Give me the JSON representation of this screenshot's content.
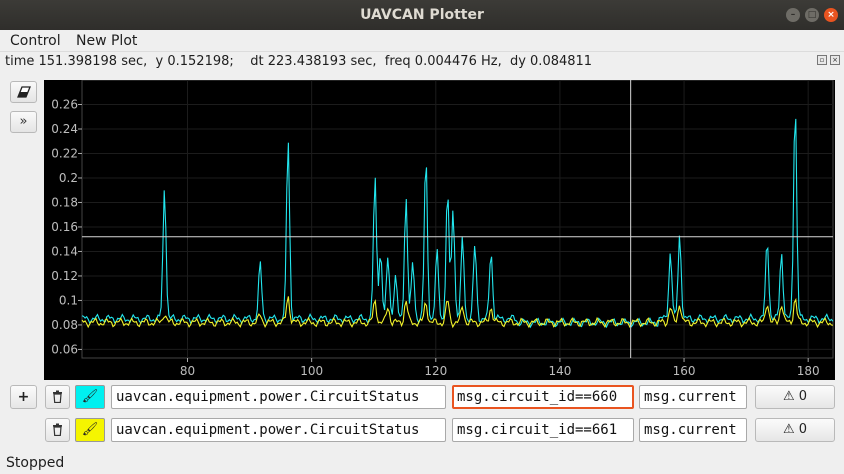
{
  "window": {
    "title": "UAVCAN Plotter"
  },
  "menu": {
    "control_label": "Control",
    "new_plot_label": "New Plot"
  },
  "status": {
    "readout": "time 151.398198 sec,  y 0.152198;    dt 223.438193 sec,  freq 0.004476 Hz,  dy 0.084811"
  },
  "toolbar": {
    "clear_icon": "eraser-icon",
    "toggle_icon": "double-chevron-right-icon",
    "toggle_glyph": "»"
  },
  "chart_data": {
    "type": "line",
    "title": "",
    "xlabel": "",
    "ylabel": "",
    "xlim": [
      63,
      184
    ],
    "ylim": [
      0.053,
      0.28
    ],
    "x_ticks": [
      80,
      100,
      120,
      140,
      160,
      180
    ],
    "y_ticks": [
      0.06,
      0.08,
      0.1,
      0.12,
      0.14,
      0.16,
      0.18,
      0.2,
      0.22,
      0.24,
      0.26
    ],
    "crosshair": {
      "x": 151.4,
      "y": 0.152
    },
    "series": [
      {
        "color": "#22e6ee",
        "baseline": 0.085,
        "peaks": [
          [
            76.3,
            0.193
          ],
          [
            91.7,
            0.13
          ],
          [
            96.2,
            0.232
          ],
          [
            110.2,
            0.2
          ],
          [
            111.1,
            0.14
          ],
          [
            112.3,
            0.135
          ],
          [
            113.5,
            0.12
          ],
          [
            115.2,
            0.185
          ],
          [
            116.3,
            0.13
          ],
          [
            118.4,
            0.217
          ],
          [
            120.2,
            0.14
          ],
          [
            121.9,
            0.188
          ],
          [
            122.8,
            0.175
          ],
          [
            124.3,
            0.15
          ],
          [
            126.3,
            0.145
          ],
          [
            128.9,
            0.141
          ],
          [
            157.8,
            0.14
          ],
          [
            159.3,
            0.154
          ],
          [
            173.4,
            0.15
          ],
          [
            175.7,
            0.14
          ],
          [
            177.9,
            0.263
          ]
        ]
      },
      {
        "color": "#f2f22a",
        "baseline": 0.082,
        "peaks": [
          [
            76.3,
            0.09
          ],
          [
            91.7,
            0.088
          ],
          [
            96.2,
            0.104
          ],
          [
            110.2,
            0.1
          ],
          [
            112.3,
            0.095
          ],
          [
            115.2,
            0.1
          ],
          [
            118.4,
            0.099
          ],
          [
            121.9,
            0.1
          ],
          [
            124.3,
            0.095
          ],
          [
            128.9,
            0.095
          ],
          [
            157.8,
            0.095
          ],
          [
            159.3,
            0.098
          ],
          [
            173.4,
            0.099
          ],
          [
            175.7,
            0.098
          ],
          [
            177.9,
            0.102
          ]
        ]
      }
    ]
  },
  "rows": [
    {
      "message_type": "uavcan.equipment.power.CircuitStatus",
      "filter": "msg.circuit_id==660",
      "field": "msg.current",
      "warn_count": "0",
      "color": "#00f0f0",
      "warn_glyph": "⚠"
    },
    {
      "message_type": "uavcan.equipment.power.CircuitStatus",
      "filter": "msg.circuit_id==661",
      "field": "msg.current",
      "warn_count": "0",
      "color": "#f5f500",
      "warn_glyph": "⚠"
    }
  ],
  "add_glyph": "+",
  "state": {
    "text": "Stopped"
  }
}
